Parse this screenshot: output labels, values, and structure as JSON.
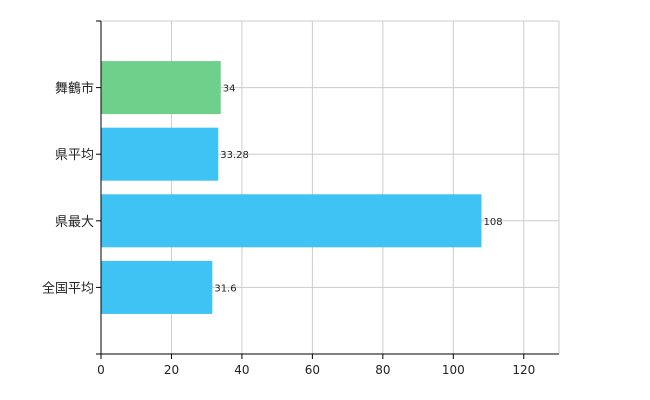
{
  "chart_data": {
    "type": "bar",
    "orientation": "horizontal",
    "categories": [
      "舞鶴市",
      "県平均",
      "県最大",
      "全国平均"
    ],
    "values": [
      34,
      33.28,
      108,
      31.6
    ],
    "value_labels": [
      "34",
      "33.28",
      "108",
      "31.6"
    ],
    "bar_colors": [
      "#6ed08a",
      "#3ec3f4",
      "#3ec3f4",
      "#3ec3f4"
    ],
    "xlim": [
      0,
      130
    ],
    "xticks": [
      0,
      20,
      40,
      60,
      80,
      100,
      120
    ],
    "x_tick_labels": [
      "0",
      "20",
      "40",
      "60",
      "80",
      "100",
      "120"
    ],
    "grid": true,
    "grid_color": "#cccccc",
    "axis_color": "#000000",
    "title": "",
    "xlabel": "",
    "ylabel": ""
  }
}
